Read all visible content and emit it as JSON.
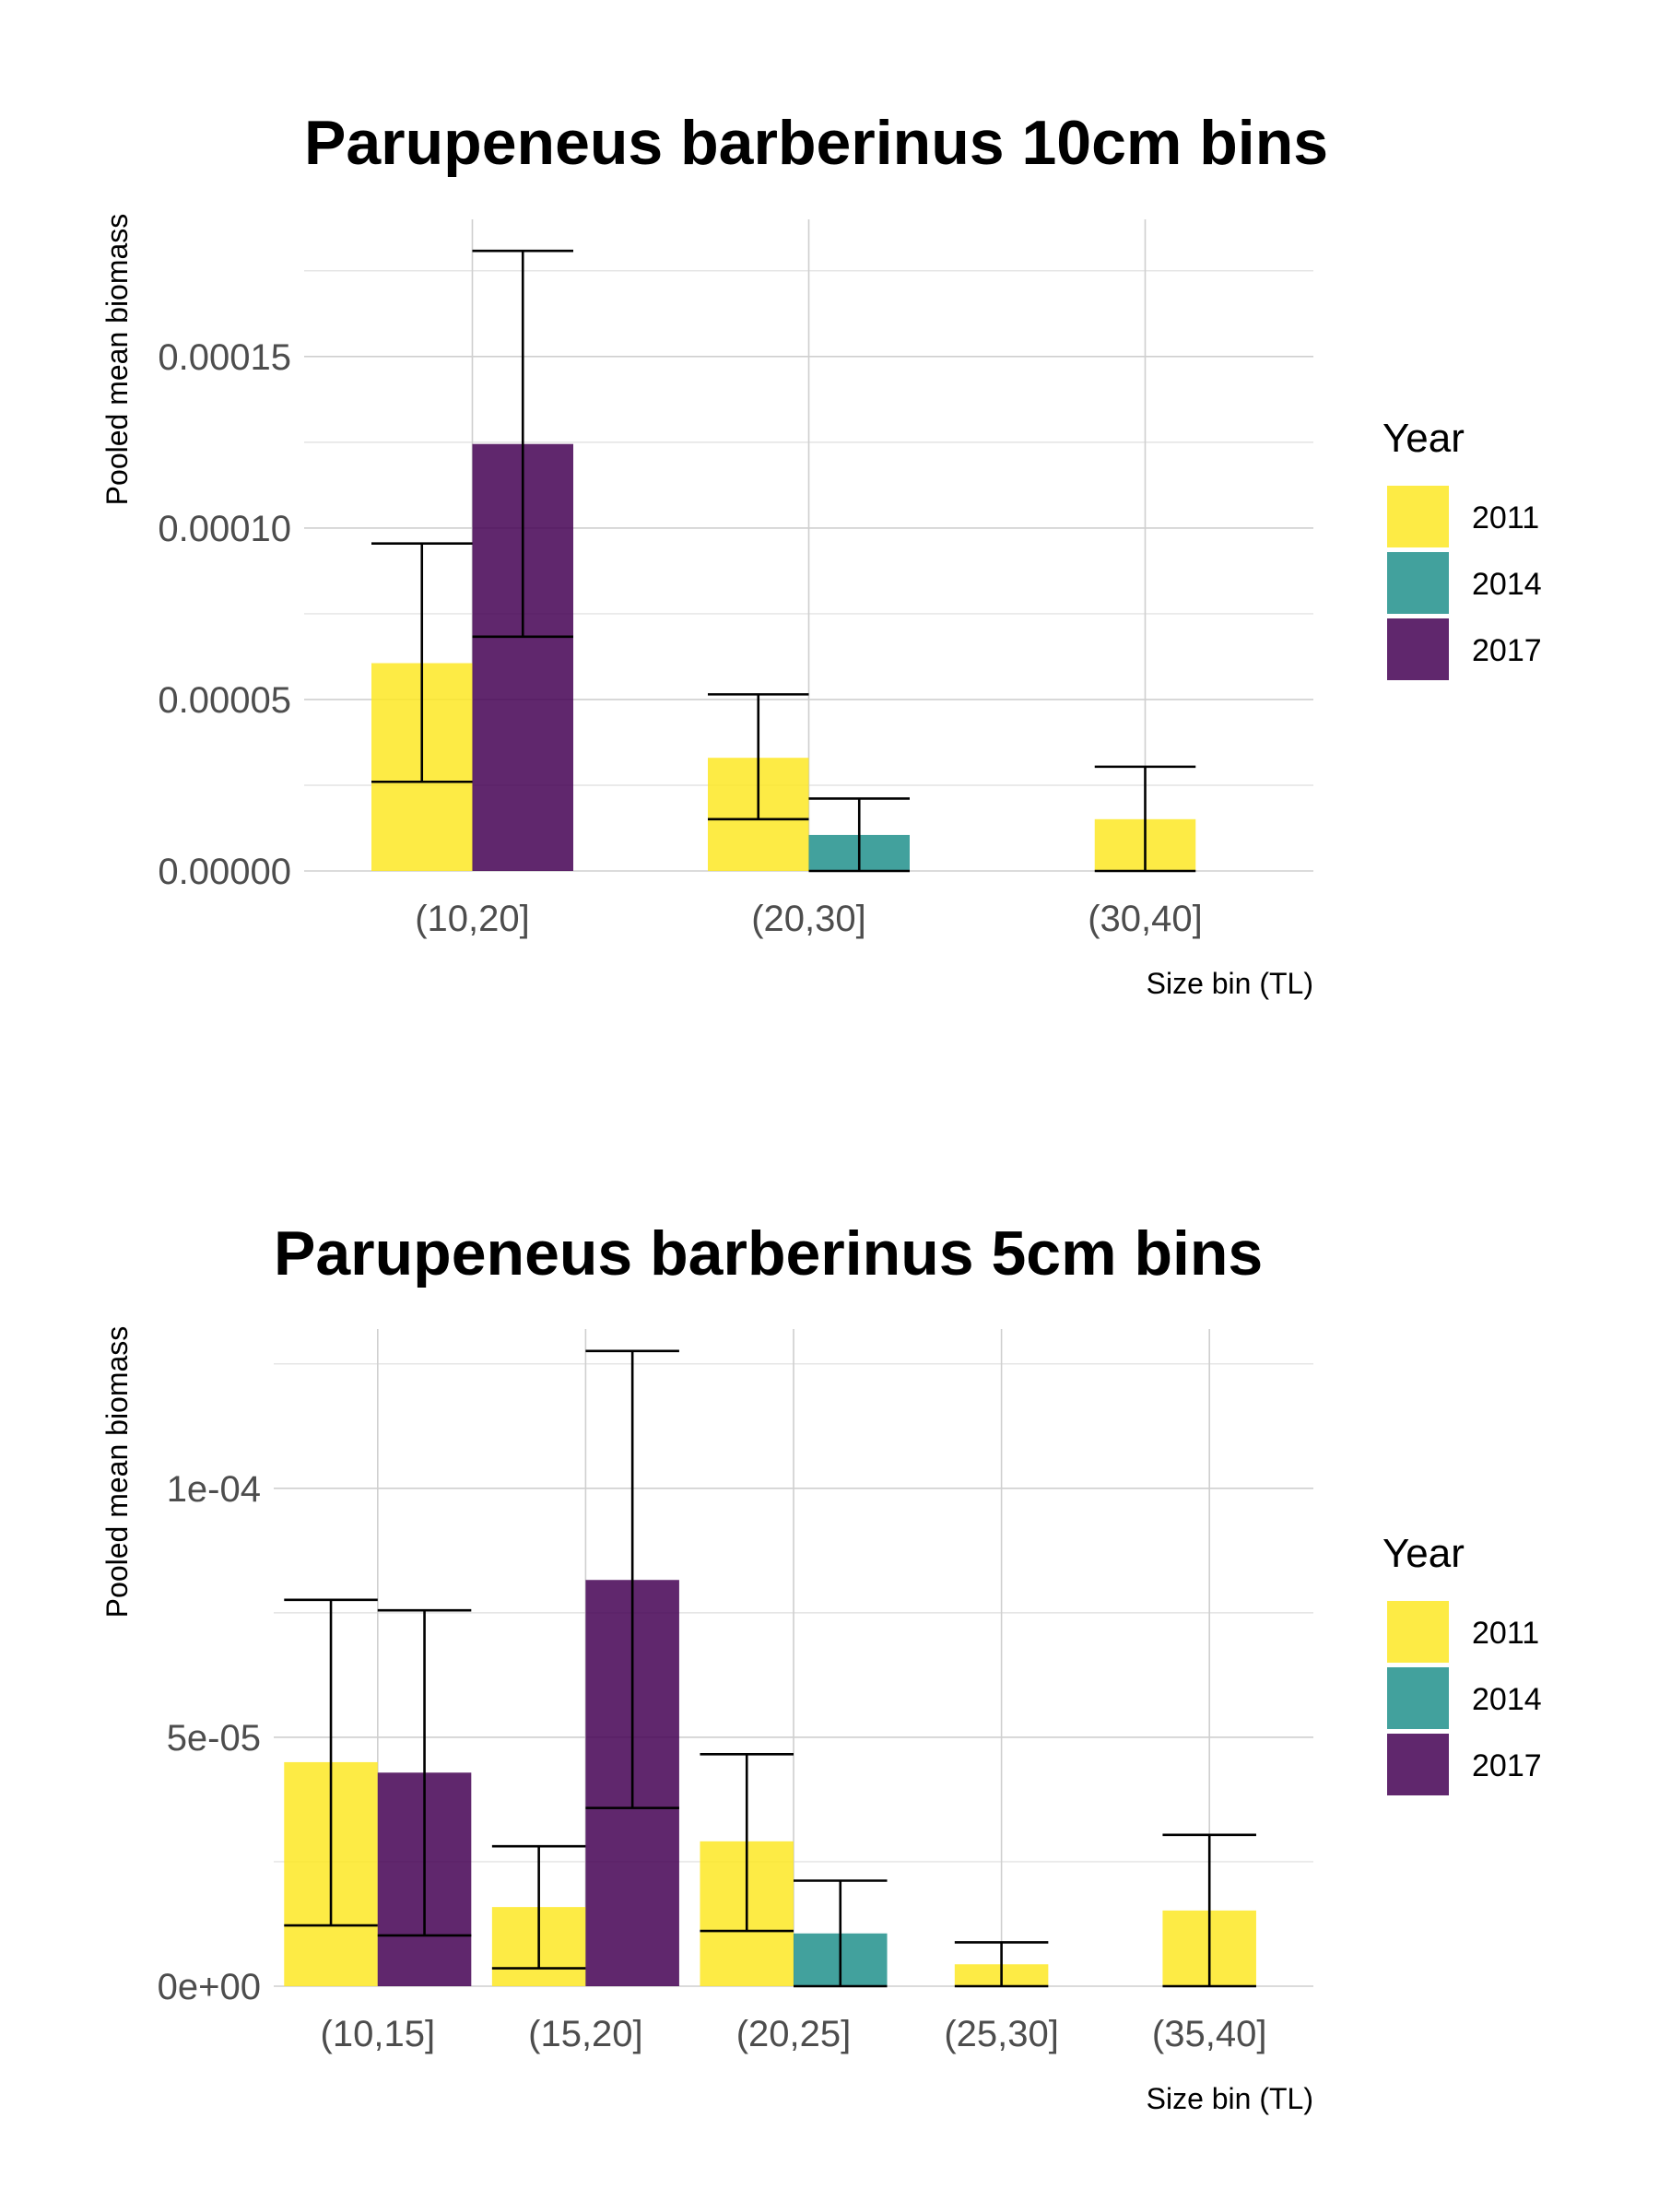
{
  "chart_data": [
    {
      "type": "bar",
      "title": "Parupeneus barberinus 10cm bins",
      "xlabel": "Size bin (TL)",
      "ylabel": "Pooled mean biomass",
      "categories": [
        "(10,20]",
        "(20,30]",
        "(30,40]"
      ],
      "ylim": [
        0,
        0.00019
      ],
      "yticks": [
        0,
        5e-05,
        0.0001,
        0.00015
      ],
      "ytick_labels": [
        "0.00000",
        "0.00005",
        "0.00010",
        "0.00015"
      ],
      "grid": true,
      "legend": {
        "title": "Year",
        "position": "right"
      },
      "series": [
        {
          "name": "2011",
          "color": "#FDE725",
          "values": [
            6.06e-05,
            3.3e-05,
            1.51e-05
          ],
          "err_low": [
            2.6e-05,
            1.51e-05,
            0.0
          ],
          "err_high": [
            9.55e-05,
            5.15e-05,
            3.04e-05
          ]
        },
        {
          "name": "2014",
          "color": "#21908C",
          "values": [
            null,
            1.05e-05,
            null
          ],
          "err_low": [
            null,
            0.0,
            null
          ],
          "err_high": [
            null,
            2.11e-05,
            null
          ]
        },
        {
          "name": "2017",
          "color": "#440154",
          "values": [
            0.0001245,
            null,
            null
          ],
          "err_low": [
            6.83e-05,
            null,
            null
          ],
          "err_high": [
            0.0001808,
            null,
            null
          ]
        }
      ]
    },
    {
      "type": "bar",
      "title": "Parupeneus barberinus 5cm bins",
      "xlabel": "Size bin (TL)",
      "ylabel": "Pooled mean biomass",
      "categories": [
        "(10,15]",
        "(15,20]",
        "(20,25]",
        "(25,30]",
        "(35,40]"
      ],
      "ylim": [
        0,
        0.000132
      ],
      "yticks": [
        0,
        5e-05,
        0.0001
      ],
      "ytick_labels": [
        "0e+00",
        "5e-05",
        "1e-04"
      ],
      "grid": true,
      "legend": {
        "title": "Year",
        "position": "right"
      },
      "series": [
        {
          "name": "2011",
          "color": "#FDE725",
          "values": [
            4.5e-05,
            1.59e-05,
            2.91e-05,
            4.4e-06,
            1.52e-05
          ],
          "err_low": [
            1.22e-05,
            3.6e-06,
            1.11e-05,
            0.0,
            0.0
          ],
          "err_high": [
            7.76e-05,
            2.81e-05,
            4.66e-05,
            8.8e-06,
            3.04e-05
          ]
        },
        {
          "name": "2014",
          "color": "#21908C",
          "values": [
            null,
            null,
            1.06e-05,
            null,
            null
          ],
          "err_low": [
            null,
            null,
            0.0,
            null,
            null
          ],
          "err_high": [
            null,
            null,
            2.12e-05,
            null,
            null
          ]
        },
        {
          "name": "2017",
          "color": "#440154",
          "values": [
            4.29e-05,
            8.16e-05,
            null,
            null,
            null
          ],
          "err_low": [
            1.02e-05,
            3.58e-05,
            null,
            null,
            null
          ],
          "err_high": [
            7.55e-05,
            0.0001276,
            null,
            null,
            null
          ]
        }
      ]
    }
  ]
}
